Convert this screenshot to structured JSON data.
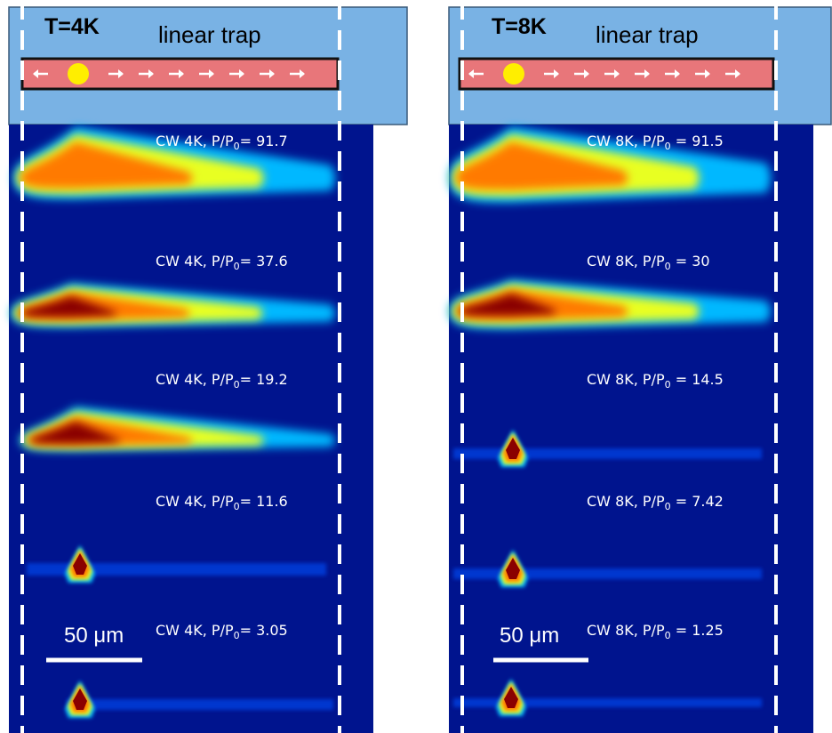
{
  "panels": [
    {
      "temperature": "T=4K",
      "trap": "linear trap",
      "scale_bar": "50 μm",
      "frames": [
        {
          "label": "CW 4K,  P/P",
          "subscript": "0",
          "value": "= 91.7"
        },
        {
          "label": "CW 4K,  P/P",
          "subscript": "0",
          "value": "= 37.6"
        },
        {
          "label": "CW 4K,  P/P",
          "subscript": "0",
          "value": "= 19.2"
        },
        {
          "label": "CW 4K,  P/P",
          "subscript": "0",
          "value": "= 11.6"
        },
        {
          "label": "CW 4K,  P/P",
          "subscript": "0",
          "value": "= 3.05"
        }
      ]
    },
    {
      "temperature": "T=8K",
      "trap": "linear trap",
      "scale_bar": "50 μm",
      "frames": [
        {
          "label": "CW 8K,  P/P",
          "subscript": "0",
          "value": " = 91.5"
        },
        {
          "label": "CW 8K,  P/P",
          "subscript": "0",
          "value": " = 30"
        },
        {
          "label": "CW 8K,  P/P",
          "subscript": "0",
          "value": " = 14.5"
        },
        {
          "label": "CW 8K,  P/P",
          "subscript": "0",
          "value": " = 7.42"
        },
        {
          "label": "CW 8K,  P/P",
          "subscript": "0",
          "value": " = 1.25"
        }
      ]
    }
  ]
}
